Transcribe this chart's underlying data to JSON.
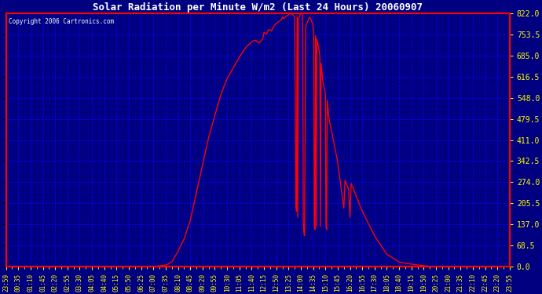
{
  "title": "Solar Radiation per Minute W/m2 (Last 24 Hours) 20060907",
  "copyright": "Copyright 2006 Cartronics.com",
  "bg_color": "#000080",
  "line_color": "#FF0000",
  "grid_color": "#0000FF",
  "text_color": "#FFFFFF",
  "tick_color": "#FFFF00",
  "ylim": [
    0.0,
    822.0
  ],
  "yticks": [
    0.0,
    68.5,
    137.0,
    205.5,
    274.0,
    342.5,
    411.0,
    479.5,
    548.0,
    616.5,
    685.0,
    753.5,
    822.0
  ],
  "x_labels": [
    "23:59",
    "00:35",
    "01:10",
    "01:45",
    "02:20",
    "02:55",
    "03:30",
    "04:05",
    "04:40",
    "05:15",
    "05:50",
    "06:25",
    "07:00",
    "07:35",
    "08:10",
    "08:45",
    "09:20",
    "09:55",
    "10:30",
    "11:05",
    "11:40",
    "12:15",
    "12:50",
    "13:25",
    "14:00",
    "14:35",
    "15:10",
    "15:45",
    "16:20",
    "16:55",
    "17:30",
    "18:05",
    "18:40",
    "19:15",
    "19:50",
    "20:25",
    "21:00",
    "21:35",
    "22:10",
    "22:45",
    "23:20",
    "23:55"
  ],
  "curve_x": [
    0,
    1,
    2,
    3,
    4,
    5,
    6,
    7,
    8,
    9,
    10,
    11,
    12,
    13.0,
    13.5,
    14.0,
    14.5,
    15.0,
    15.5,
    16.0,
    16.5,
    17.0,
    17.5,
    18.0,
    18.5,
    19.0,
    19.5,
    20.0,
    20.3,
    20.6,
    20.9,
    21.0,
    21.2,
    21.4,
    21.6,
    21.8,
    22.0,
    22.2,
    22.4,
    22.5,
    22.6,
    22.8,
    23.0,
    23.1,
    23.2,
    23.3,
    23.4,
    23.5,
    23.6,
    23.65,
    23.7,
    23.75,
    23.8,
    24.0,
    24.1,
    24.15,
    24.2,
    24.25,
    24.3,
    24.4,
    24.5,
    24.6,
    24.7,
    24.8,
    24.9,
    25.0,
    25.05,
    25.1,
    25.15,
    25.2,
    25.25,
    25.3,
    25.4,
    25.5,
    25.55,
    25.6,
    25.65,
    25.7,
    25.75,
    25.8,
    25.9,
    26.0,
    26.05,
    26.1,
    26.15,
    26.2,
    26.25,
    26.3,
    26.4,
    26.5,
    26.6,
    26.7,
    26.8,
    26.9,
    27.0,
    27.1,
    27.2,
    27.3,
    27.4,
    27.5,
    27.6,
    27.7,
    27.8,
    27.9,
    28.0,
    28.1,
    28.2,
    28.3,
    28.4,
    28.5,
    28.6,
    28.7,
    28.8,
    29.0,
    29.5,
    30.0,
    30.5,
    31.0,
    32.0,
    33.0,
    34.0,
    34.5,
    35.0,
    36,
    37,
    38,
    39,
    40,
    41
  ],
  "curve_y": [
    0,
    0,
    0,
    0,
    0,
    0,
    0,
    0,
    0,
    0,
    0,
    0,
    0,
    5,
    15,
    50,
    90,
    150,
    240,
    330,
    420,
    490,
    560,
    610,
    645,
    680,
    710,
    730,
    735,
    725,
    740,
    760,
    755,
    770,
    765,
    780,
    790,
    795,
    800,
    810,
    805,
    812,
    818,
    820,
    822,
    819,
    815,
    810,
    200,
    180,
    810,
    160,
    805,
    822,
    820,
    810,
    140,
    110,
    100,
    780,
    790,
    800,
    810,
    805,
    795,
    780,
    760,
    130,
    120,
    750,
    130,
    740,
    720,
    700,
    680,
    130,
    660,
    640,
    620,
    600,
    580,
    560,
    130,
    120,
    540,
    520,
    500,
    480,
    460,
    440,
    420,
    400,
    380,
    360,
    340,
    310,
    280,
    250,
    220,
    190,
    280,
    270,
    260,
    250,
    160,
    270,
    260,
    250,
    240,
    230,
    220,
    210,
    200,
    180,
    140,
    100,
    70,
    40,
    15,
    8,
    3,
    1,
    0,
    0,
    0,
    0,
    0,
    0,
    0
  ]
}
